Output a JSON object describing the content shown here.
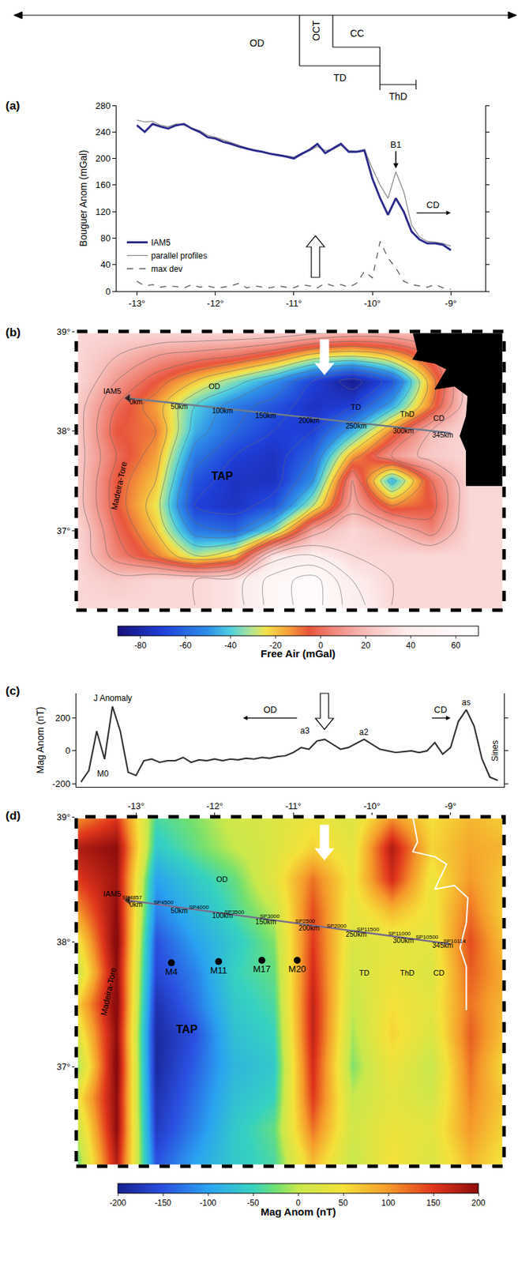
{
  "chart_data": [
    {
      "label": "(a)",
      "type": "line",
      "y_label": "Bouguer Anom (mGal)",
      "domains": [
        "OD",
        "OCT",
        "CC",
        "TD",
        "ThD"
      ],
      "x": [
        -13.0,
        -12.9,
        -12.8,
        -12.7,
        -12.6,
        -12.5,
        -12.4,
        -12.3,
        -12.2,
        -12.1,
        -12.0,
        -11.9,
        -11.8,
        -11.7,
        -11.6,
        -11.5,
        -11.4,
        -11.3,
        -11.2,
        -11.1,
        -11.0,
        -10.9,
        -10.8,
        -10.7,
        -10.6,
        -10.5,
        -10.4,
        -10.3,
        -10.2,
        -10.1,
        -10.0,
        -9.9,
        -9.8,
        -9.7,
        -9.6,
        -9.5,
        -9.4,
        -9.3,
        -9.2,
        -9.1,
        -9.0
      ],
      "series": [
        {
          "name": "IAM5",
          "color": "#2b2b8c",
          "line_style": "solid",
          "values": [
            250,
            240,
            252,
            248,
            245,
            250,
            252,
            245,
            240,
            232,
            230,
            225,
            222,
            218,
            215,
            212,
            210,
            207,
            205,
            203,
            200,
            207,
            213,
            222,
            208,
            215,
            222,
            210,
            210,
            212,
            170,
            140,
            115,
            140,
            120,
            90,
            78,
            72,
            72,
            70,
            62
          ]
        },
        {
          "name": "parallel profiles",
          "color": "#8a8a8a",
          "line_style": "solid",
          "values": [
            258,
            255,
            256,
            250,
            248,
            252,
            250,
            245,
            242,
            235,
            232,
            228,
            224,
            220,
            216,
            213,
            210,
            208,
            206,
            204,
            202,
            208,
            212,
            218,
            212,
            214,
            220,
            212,
            211,
            214,
            185,
            160,
            140,
            180,
            150,
            100,
            82,
            75,
            74,
            72,
            68
          ]
        },
        {
          "name": "max dev",
          "color": "#555555",
          "line_style": "dashed",
          "values": [
            15,
            8,
            10,
            6,
            8,
            7,
            5,
            10,
            6,
            8,
            5,
            6,
            8,
            12,
            5,
            8,
            6,
            5,
            8,
            6,
            5,
            10,
            8,
            5,
            12,
            8,
            10,
            6,
            12,
            30,
            20,
            75,
            50,
            35,
            15,
            10,
            8,
            6,
            10,
            5,
            3
          ]
        }
      ],
      "xlim": [
        -13.26,
        -8.56
      ],
      "xticks": [
        {
          "value": -13,
          "label": "-13°"
        },
        {
          "value": -12,
          "label": "-12°"
        },
        {
          "value": -11,
          "label": "-11°"
        },
        {
          "value": -10,
          "label": "-10°"
        },
        {
          "value": -9,
          "label": "-9°"
        }
      ],
      "ylim": [
        0,
        280
      ],
      "yticks": [
        0,
        40,
        80,
        120,
        160,
        200,
        240,
        280
      ],
      "grid": false,
      "legend": "lower left",
      "annotations": [
        {
          "text": "B1",
          "x": -9.7,
          "y": 185
        }
      ],
      "arrows": [
        {
          "text": "CD",
          "from": -9.45,
          "to": -9.0,
          "y": 118
        }
      ]
    },
    {
      "label": "(b)",
      "type": "heatmap",
      "colorbar_title": "Free Air (mGal)",
      "x": [
        -13.75,
        -13.25,
        -12.75,
        -12.25,
        -11.75,
        -11.25,
        -10.75,
        -10.25,
        -9.75,
        -9.25,
        -8.75,
        -8.25
      ],
      "y": [
        36.25,
        36.5,
        36.75,
        37.0,
        37.25,
        37.5,
        37.75,
        38.0,
        38.25,
        38.5,
        38.75,
        39.0
      ],
      "z": [
        [
          30,
          30,
          30,
          30,
          35,
          55,
          65,
          45,
          30,
          30,
          30,
          30
        ],
        [
          30,
          25,
          30,
          30,
          35,
          55,
          65,
          40,
          30,
          30,
          30,
          30
        ],
        [
          30,
          5,
          -10,
          -30,
          -20,
          35,
          40,
          30,
          30,
          30,
          30,
          30
        ],
        [
          30,
          0,
          -20,
          -55,
          -60,
          -35,
          15,
          30,
          20,
          5,
          30,
          30
        ],
        [
          25,
          -5,
          -25,
          -70,
          -75,
          -65,
          -30,
          15,
          -10,
          -5,
          30,
          30
        ],
        [
          25,
          -5,
          -20,
          -65,
          -75,
          -75,
          -50,
          10,
          -45,
          0,
          30,
          30
        ],
        [
          25,
          0,
          -15,
          -55,
          -70,
          -75,
          -60,
          -15,
          10,
          25,
          30,
          30
        ],
        [
          25,
          -5,
          -10,
          -45,
          -60,
          -70,
          -70,
          -45,
          -10,
          20,
          30,
          30
        ],
        [
          25,
          0,
          -15,
          -40,
          -55,
          -65,
          -75,
          -70,
          -45,
          -10,
          30,
          30
        ],
        [
          30,
          10,
          -5,
          -20,
          -35,
          -50,
          -70,
          -85,
          -65,
          -15,
          30,
          30
        ],
        [
          30,
          20,
          10,
          5,
          0,
          -10,
          -25,
          -30,
          -20,
          0,
          30,
          30
        ],
        [
          30,
          30,
          30,
          30,
          30,
          30,
          25,
          20,
          20,
          25,
          30,
          30
        ]
      ],
      "zlim": [
        -90,
        70
      ],
      "zticks": [
        -80,
        -60,
        -40,
        -20,
        0,
        20,
        40,
        60
      ],
      "xlim": [
        -13.76,
        -8.32
      ],
      "ylim": [
        36.2,
        39.0
      ],
      "yticks": [
        {
          "value": 37,
          "label": "37°"
        },
        {
          "value": 38,
          "label": "38°"
        },
        {
          "value": 39,
          "label": "39°"
        }
      ],
      "tick_labels": "y",
      "grid": false,
      "profile": {
        "name": "IAM5",
        "lon": [
          -13.1,
          -9.0
        ],
        "lat": [
          38.33,
          37.98
        ]
      },
      "km_labels": {
        "labels": [
          "0km",
          "50km",
          "100km",
          "150km",
          "200km",
          "250km",
          "300km",
          "345km"
        ],
        "lon": [
          -13.0,
          -12.45,
          -11.9,
          -11.35,
          -10.8,
          -10.2,
          -9.6,
          -9.1
        ],
        "lat": [
          38.32,
          38.27,
          38.23,
          38.18,
          38.13,
          38.08,
          38.03,
          37.99
        ]
      },
      "region_labels": [
        "OD",
        "TD",
        "ThD",
        "CD"
      ],
      "basin_label": "TAP",
      "ridge_label": "Madeira-Tore",
      "coastline": {
        "lon": [
          -9.48,
          -9.42,
          -9.48,
          -9.2,
          -9.05,
          -9.2,
          -8.95,
          -8.78,
          -8.8,
          -8.88,
          -8.8,
          -8.8
        ],
        "lat": [
          39.0,
          38.8,
          38.72,
          38.68,
          38.62,
          38.42,
          38.45,
          38.35,
          38.15,
          37.95,
          37.8,
          37.45
        ]
      }
    },
    {
      "label": "(c)",
      "type": "line",
      "y_label": "Mag Anom (nT)",
      "x": [
        -13.7,
        -13.6,
        -13.5,
        -13.4,
        -13.3,
        -13.2,
        -13.1,
        -13.0,
        -12.9,
        -12.8,
        -12.7,
        -12.6,
        -12.5,
        -12.4,
        -12.3,
        -12.2,
        -12.1,
        -12.0,
        -11.9,
        -11.8,
        -11.7,
        -11.6,
        -11.5,
        -11.4,
        -11.3,
        -11.2,
        -11.1,
        -11.0,
        -10.9,
        -10.8,
        -10.7,
        -10.6,
        -10.5,
        -10.4,
        -10.3,
        -10.2,
        -10.1,
        -10.0,
        -9.9,
        -9.8,
        -9.7,
        -9.6,
        -9.5,
        -9.4,
        -9.3,
        -9.2,
        -9.1,
        -9.0,
        -8.9,
        -8.8,
        -8.7,
        -8.6,
        -8.5,
        -8.4
      ],
      "values": [
        -190,
        -120,
        120,
        -50,
        270,
        120,
        -130,
        -150,
        -60,
        -50,
        -70,
        -60,
        -60,
        -40,
        -70,
        -55,
        -60,
        -50,
        -60,
        -50,
        -55,
        -45,
        -50,
        -40,
        -45,
        -35,
        -30,
        -10,
        20,
        10,
        60,
        70,
        40,
        10,
        20,
        45,
        70,
        40,
        10,
        0,
        -10,
        -5,
        0,
        -10,
        0,
        50,
        -20,
        20,
        180,
        250,
        150,
        -50,
        -160,
        -180
      ],
      "color": "#333333",
      "xlim": [
        -13.76,
        -8.32
      ],
      "ylim": [
        -220,
        350
      ],
      "yticks": [
        -200,
        0,
        200
      ],
      "tick_labels": "y",
      "grid": false,
      "annotations": [
        {
          "text": "J Anomaly",
          "x": -13.3,
          "y": 320
        },
        {
          "text": "M0",
          "x": -13.42,
          "y": -140
        },
        {
          "text": "a3",
          "x": -10.85,
          "y": 120
        },
        {
          "text": "a2",
          "x": -10.1,
          "y": 115
        },
        {
          "text": "as",
          "x": -8.8,
          "y": 295
        }
      ],
      "arrows": [
        {
          "text": "OD",
          "from": -10.94,
          "to": -11.64,
          "y": 200
        },
        {
          "text": "CD",
          "from": -9.25,
          "to": -9.0,
          "y": 200
        }
      ],
      "end_label": "Sines"
    },
    {
      "label": "(d)",
      "type": "heatmap",
      "colorbar_title": "Mag Anom (nT)",
      "x": [
        -13.75,
        -13.25,
        -12.75,
        -12.25,
        -11.75,
        -11.25,
        -10.75,
        -10.25,
        -9.75,
        -9.25,
        -8.75,
        -8.25
      ],
      "y": [
        36.25,
        36.5,
        36.75,
        37.0,
        37.25,
        37.5,
        37.75,
        38.0,
        38.25,
        38.5,
        38.75,
        39.0
      ],
      "z": [
        [
          -30,
          180,
          -150,
          -100,
          -60,
          -40,
          80,
          0,
          50,
          20,
          80,
          40
        ],
        [
          0,
          200,
          -170,
          -120,
          -60,
          -30,
          120,
          10,
          40,
          30,
          100,
          50
        ],
        [
          40,
          200,
          -180,
          -130,
          -70,
          -50,
          150,
          0,
          30,
          10,
          110,
          60
        ],
        [
          -20,
          210,
          -190,
          -140,
          -80,
          -60,
          160,
          -20,
          40,
          0,
          120,
          40
        ],
        [
          20,
          200,
          -190,
          -150,
          -70,
          -50,
          170,
          -10,
          60,
          20,
          130,
          60
        ],
        [
          60,
          210,
          -180,
          -130,
          -60,
          -40,
          170,
          0,
          50,
          30,
          120,
          70
        ],
        [
          0,
          200,
          -160,
          -120,
          -50,
          -30,
          160,
          10,
          40,
          20,
          130,
          80
        ],
        [
          40,
          210,
          -150,
          -100,
          -60,
          -20,
          150,
          20,
          30,
          30,
          140,
          60
        ],
        [
          100,
          200,
          -120,
          -80,
          -40,
          0,
          140,
          30,
          80,
          40,
          120,
          50
        ],
        [
          150,
          190,
          -100,
          -60,
          -30,
          30,
          120,
          40,
          160,
          40,
          100,
          60
        ],
        [
          180,
          200,
          -60,
          -30,
          0,
          20,
          60,
          30,
          180,
          60,
          90,
          80
        ],
        [
          100,
          150,
          -40,
          -20,
          10,
          20,
          40,
          20,
          100,
          50,
          80,
          60
        ]
      ],
      "zlim": [
        -200,
        200
      ],
      "zticks": [
        -200,
        -150,
        -100,
        -50,
        0,
        50,
        100,
        150,
        200
      ],
      "xlim": [
        -13.76,
        -8.32
      ],
      "ylim": [
        36.2,
        39.0
      ],
      "xticks": [
        {
          "value": -13,
          "label": "-13°"
        },
        {
          "value": -12,
          "label": "-12°"
        },
        {
          "value": -11,
          "label": "-11°"
        },
        {
          "value": -10,
          "label": "-10°"
        },
        {
          "value": -9,
          "label": "-9°"
        }
      ],
      "yticks": [
        {
          "value": 37,
          "label": "37°"
        },
        {
          "value": 38,
          "label": "38°"
        },
        {
          "value": 39,
          "label": "39°"
        }
      ],
      "grid": false,
      "profile": {
        "name": "IAM5",
        "lon": [
          -13.1,
          -9.0
        ],
        "lat": [
          38.33,
          37.98
        ]
      },
      "km_labels": {
        "labels": [
          "0km",
          "50km",
          "100km",
          "150km",
          "200km",
          "250km",
          "300km",
          "345km"
        ],
        "lon": [
          -13.0,
          -12.45,
          -11.9,
          -11.35,
          -10.8,
          -10.2,
          -9.6,
          -9.1
        ],
        "lat": [
          38.32,
          38.27,
          38.23,
          38.18,
          38.13,
          38.08,
          38.03,
          37.99
        ]
      },
      "sp_labels": {
        "labels": [
          "SP4857",
          "SP4500",
          "SP4000",
          "SP3500",
          "SP3000",
          "SP2500",
          "SP2000",
          "SP11500",
          "SP11000",
          "SP10500",
          "SP10114"
        ],
        "lon": [
          -13.05,
          -12.65,
          -12.2,
          -11.75,
          -11.3,
          -10.85,
          -10.45,
          -10.05,
          -9.65,
          -9.3,
          -8.95
        ],
        "lat": [
          38.33,
          38.29,
          38.25,
          38.21,
          38.18,
          38.14,
          38.1,
          38.07,
          38.04,
          38.01,
          37.98
        ]
      },
      "stations": {
        "names": [
          "M4",
          "M11",
          "M17",
          "M20"
        ],
        "lon": [
          -12.55,
          -11.95,
          -11.4,
          -10.95
        ],
        "lat": [
          37.83,
          37.84,
          37.85,
          37.85
        ]
      },
      "region_labels": [
        "OD",
        "TD",
        "ThD",
        "CD"
      ],
      "basin_label": "TAP",
      "ridge_label": "Madeira-Tore",
      "coastline": {
        "lon": [
          -9.48,
          -9.42,
          -9.48,
          -9.2,
          -9.05,
          -9.2,
          -8.95,
          -8.78,
          -8.8,
          -8.88,
          -8.8,
          -8.8
        ],
        "lat": [
          39.0,
          38.8,
          38.72,
          38.68,
          38.62,
          38.42,
          38.45,
          38.35,
          38.15,
          37.95,
          37.8,
          37.45
        ]
      }
    }
  ]
}
